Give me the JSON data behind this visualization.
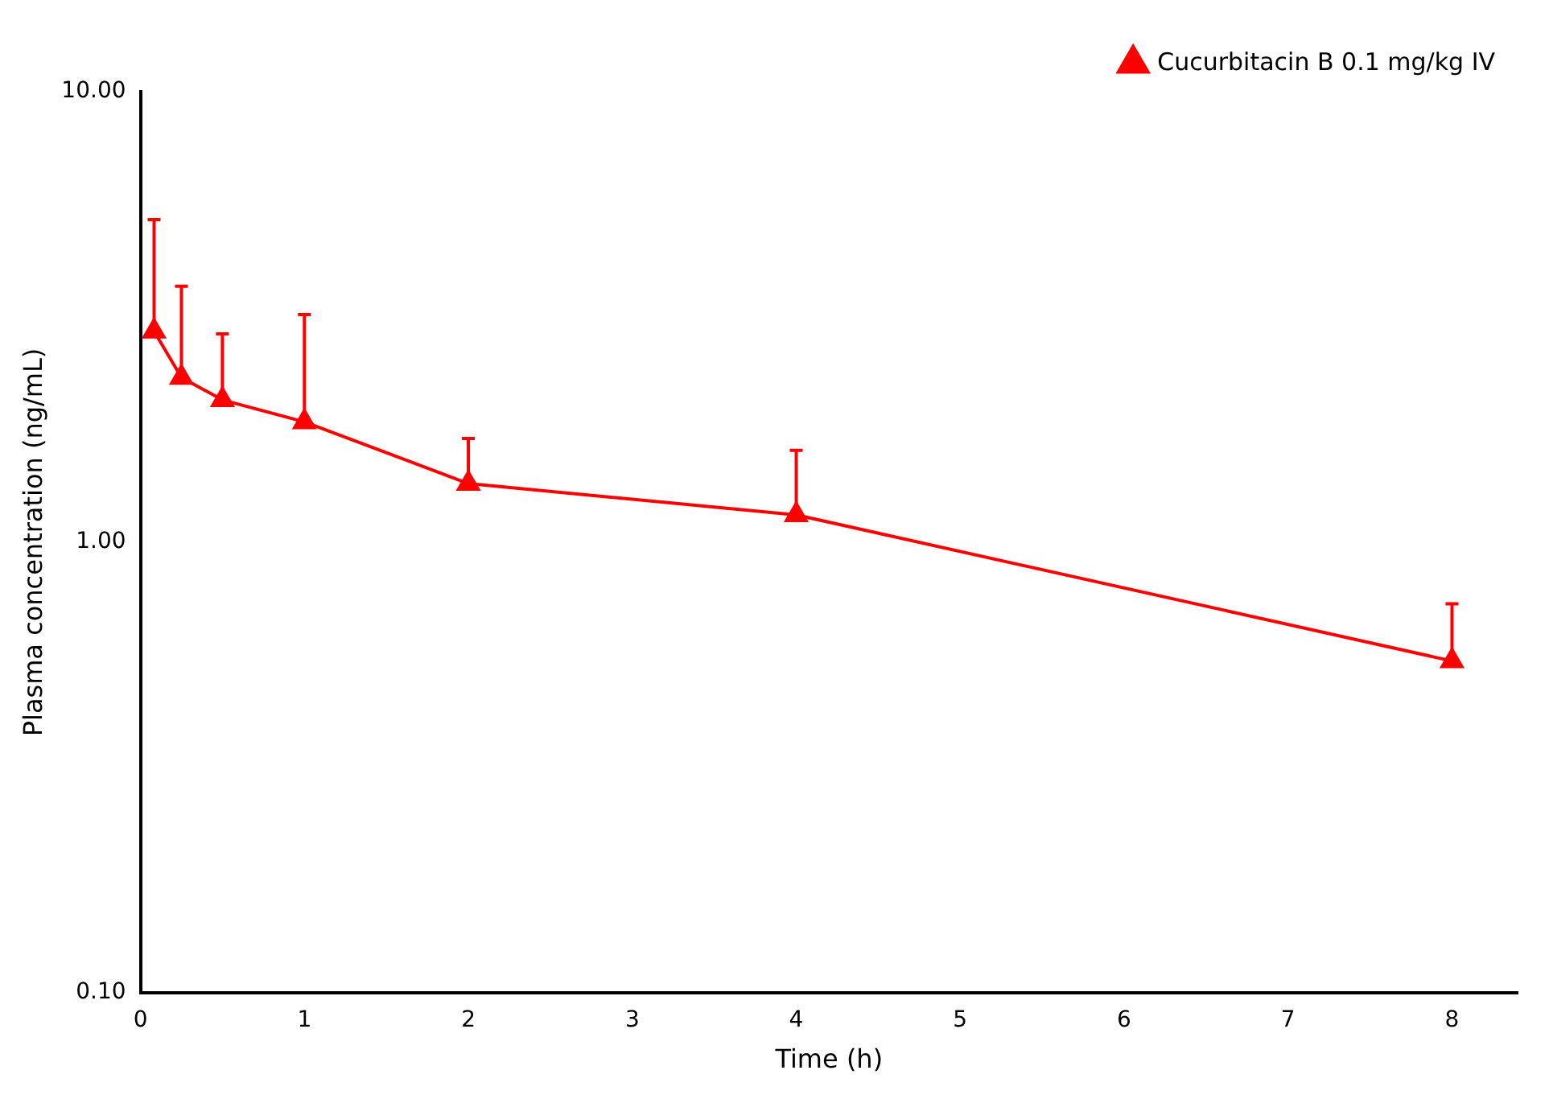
{
  "chart_data": {
    "type": "line",
    "xlabel": "Time (h)",
    "ylabel": "Plasma concentration (ng/mL)",
    "x": [
      0.083,
      0.25,
      0.5,
      1,
      2,
      4,
      8
    ],
    "series": [
      {
        "name": "Cucurbitacin B 0.1 mg/kg IV",
        "color": "#ff0000",
        "values": [
          2.94,
          2.32,
          2.07,
          1.85,
          1.35,
          1.15,
          0.545
        ],
        "errors": [
          [
            2.94,
            5.2
          ],
          [
            2.32,
            3.7
          ],
          [
            2.07,
            2.9
          ],
          [
            1.85,
            3.2
          ],
          [
            1.35,
            1.7
          ],
          [
            1.15,
            1.6
          ],
          [
            0.545,
            0.73
          ]
        ]
      }
    ],
    "log": "y",
    "xlim": [
      0,
      8.4
    ],
    "xticks": [
      0,
      1,
      2,
      3,
      4,
      5,
      6,
      7,
      8
    ],
    "ylim": [
      0.1,
      10
    ],
    "yticks": [
      {
        "value": 0.1,
        "label": "0.10"
      },
      {
        "value": 1,
        "label": "1.00"
      },
      {
        "value": 10,
        "label": "10.00"
      }
    ],
    "grid": false,
    "legend": "top right",
    "marker": "triangle",
    "line_style": "solid"
  }
}
